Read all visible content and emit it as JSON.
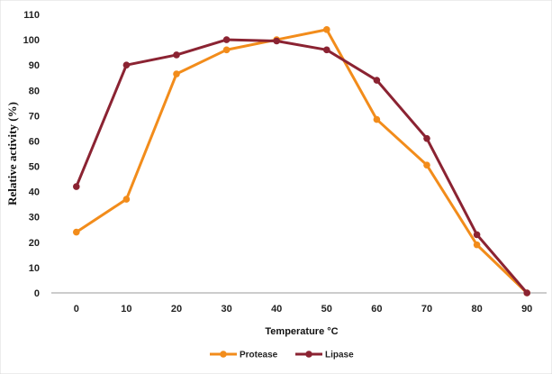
{
  "chart_data": {
    "type": "line",
    "title": "",
    "xlabel": "Temperature °C",
    "ylabel": "Relative activity (%)",
    "x": [
      0,
      10,
      20,
      30,
      40,
      50,
      60,
      70,
      80,
      90
    ],
    "xlim": [
      -5,
      95
    ],
    "ylim": [
      0,
      110
    ],
    "yticks": [
      0,
      10,
      20,
      30,
      40,
      50,
      60,
      70,
      80,
      90,
      100,
      110
    ],
    "grid": false,
    "legend_position": "bottom",
    "series": [
      {
        "name": "Protease",
        "color": "#F28C1B",
        "values": [
          24,
          37,
          86.5,
          96,
          100,
          104,
          68.5,
          50.5,
          19,
          0
        ]
      },
      {
        "name": "Lipase",
        "color": "#8B2332",
        "values": [
          42,
          90,
          94,
          100,
          99.5,
          96,
          84,
          61,
          23,
          0
        ]
      }
    ]
  }
}
